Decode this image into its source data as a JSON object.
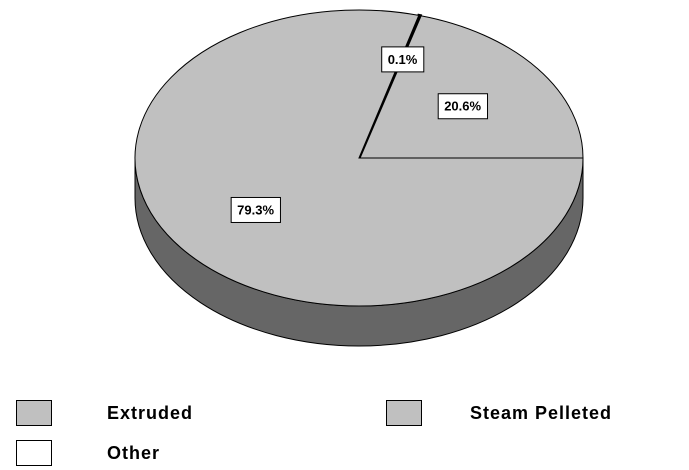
{
  "chart_data": {
    "type": "pie",
    "style": "3d",
    "slices": [
      {
        "name": "Extruded",
        "value": 20.6,
        "label": "20.6%",
        "color": "#c0c0c0"
      },
      {
        "name": "Other",
        "value": 0.1,
        "label": "0.1%",
        "color": "#ffffff"
      },
      {
        "name": "Steam Pelleted",
        "value": 79.3,
        "label": "79.3%",
        "color": "#c0c0c0"
      }
    ],
    "side_color": "#666666",
    "legend_placement": "bottom"
  },
  "legend": {
    "items": [
      {
        "label": "Extruded",
        "color": "#c0c0c0"
      },
      {
        "label": "Steam Pelleted",
        "color": "#c0c0c0"
      },
      {
        "label": "Other",
        "color": "#ffffff"
      }
    ]
  }
}
